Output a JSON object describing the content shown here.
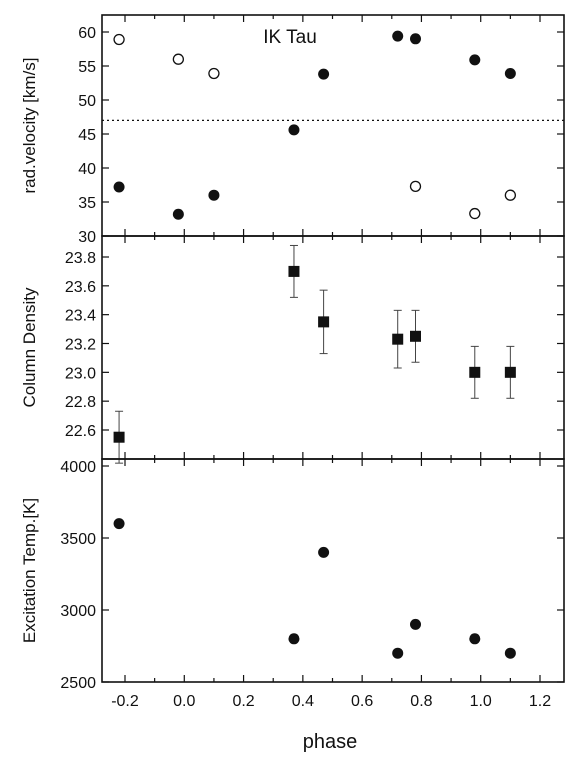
{
  "chart_data": [
    {
      "type": "scatter",
      "title": "IK Tau",
      "xlabel": "",
      "ylabel": "rad.velocity [km/s]",
      "xlim": [
        -0.3,
        1.3
      ],
      "ylim": [
        30,
        62
      ],
      "yticks": [
        "30",
        "35",
        "40",
        "45",
        "50",
        "55",
        "60"
      ],
      "reference_line": {
        "y": 47,
        "style": "dotted"
      },
      "series": [
        {
          "marker": "filled-circle",
          "x": [
            -0.22,
            -0.02,
            0.1,
            0.37,
            0.47,
            0.72,
            0.78,
            0.98,
            1.1
          ],
          "y": [
            37.2,
            33.2,
            36.0,
            45.6,
            53.8,
            59.4,
            59.0,
            55.9,
            53.9
          ]
        },
        {
          "marker": "open-circle",
          "x": [
            -0.22,
            -0.02,
            0.1,
            0.78,
            0.98,
            1.1
          ],
          "y": [
            58.9,
            56.0,
            53.9,
            37.3,
            33.3,
            36.0
          ]
        }
      ]
    },
    {
      "type": "scatter",
      "xlabel": "",
      "ylabel": "Column Density",
      "xlim": [
        -0.3,
        1.3
      ],
      "ylim": [
        22.45,
        23.9
      ],
      "yticks": [
        "22.6",
        "22.8",
        "23.0",
        "23.2",
        "23.4",
        "23.6",
        "23.8"
      ],
      "series": [
        {
          "marker": "filled-square",
          "x": [
            -0.22,
            0.37,
            0.47,
            0.72,
            0.78,
            0.98,
            1.1
          ],
          "y": [
            22.55,
            23.7,
            23.35,
            23.23,
            23.25,
            23.0,
            23.0
          ],
          "yerr": [
            0.18,
            0.18,
            0.22,
            0.2,
            0.18,
            0.18,
            0.18
          ]
        }
      ]
    },
    {
      "type": "scatter",
      "xlabel": "phase",
      "ylabel": "Excitation Temp.[K]",
      "xlim": [
        -0.3,
        1.3
      ],
      "ylim": [
        2500,
        4000
      ],
      "xticks": [
        "-0.2",
        "0.0",
        "0.2",
        "0.4",
        "0.6",
        "0.8",
        "1.0",
        "1.2"
      ],
      "yticks": [
        "2500",
        "3000",
        "3500",
        "4000"
      ],
      "series": [
        {
          "marker": "filled-circle",
          "x": [
            -0.22,
            0.37,
            0.47,
            0.72,
            0.78,
            0.98,
            1.1
          ],
          "y": [
            3600,
            2800,
            3400,
            2700,
            2900,
            2800,
            2700
          ]
        }
      ]
    }
  ]
}
